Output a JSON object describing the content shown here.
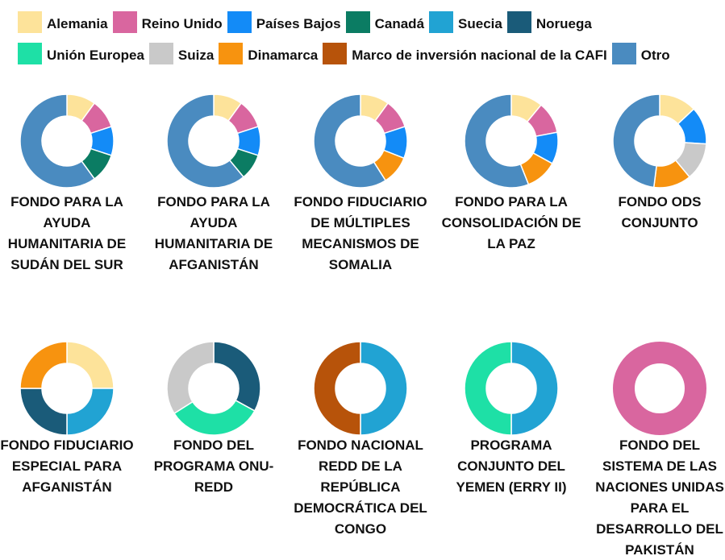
{
  "legend": {
    "entries": [
      {
        "name": "Alemania",
        "color": "#fde39a"
      },
      {
        "name": "Reino Unido",
        "color": "#d9669f"
      },
      {
        "name": "Países Bajos",
        "color": "#138bf7"
      },
      {
        "name": "Canadá",
        "color": "#0b7c63"
      },
      {
        "name": "Suecia",
        "color": "#21a3d3"
      },
      {
        "name": "Noruega",
        "color": "#1a5b79"
      },
      {
        "name": "Unión Europea",
        "color": "#1ee0a6"
      },
      {
        "name": "Suiza",
        "color": "#c9c9c9"
      },
      {
        "name": "Dinamarca",
        "color": "#f7930f"
      },
      {
        "name": "Marco de inversión nacional de la CAFI",
        "color": "#b7530a"
      },
      {
        "name": "Otro",
        "color": "#4a8bc0"
      }
    ]
  },
  "chart_data": [
    {
      "type": "pie",
      "title": "FONDO PARA LA AYUDA HUMANITARIA DE SUDÁN DEL SUR",
      "categories": [
        "Alemania",
        "Reino Unido",
        "Países Bajos",
        "Canadá",
        "Otro"
      ],
      "values": [
        10,
        10,
        10,
        10,
        60
      ]
    },
    {
      "type": "pie",
      "title": "FONDO PARA LA AYUDA HUMANITARIA DE AFGANISTÁN",
      "categories": [
        "Alemania",
        "Reino Unido",
        "Países Bajos",
        "Canadá",
        "Otro"
      ],
      "values": [
        10,
        10,
        10,
        9,
        61
      ]
    },
    {
      "type": "pie",
      "title": "FONDO FIDUCIARIO DE MÚLTIPLES MECANISMOS DE SOMALIA",
      "categories": [
        "Alemania",
        "Reino Unido",
        "Países Bajos",
        "Dinamarca",
        "Otro"
      ],
      "values": [
        10,
        10,
        11,
        10,
        59
      ]
    },
    {
      "type": "pie",
      "title": "FONDO PARA LA CONSOLIDACIÓN DE LA PAZ",
      "categories": [
        "Alemania",
        "Reino Unido",
        "Países Bajos",
        "Dinamarca",
        "Otro"
      ],
      "values": [
        11,
        11,
        11,
        11,
        56
      ]
    },
    {
      "type": "pie",
      "title": "FONDO ODS CONJUNTO",
      "categories": [
        "Alemania",
        "Países Bajos",
        "Suiza",
        "Dinamarca",
        "Otro"
      ],
      "values": [
        13,
        13,
        13,
        13,
        48
      ]
    },
    {
      "type": "pie",
      "title": "FONDO FIDUCIARIO ESPECIAL PARA AFGANISTÁN",
      "categories": [
        "Alemania",
        "Suecia",
        "Noruega",
        "Dinamarca"
      ],
      "values": [
        25,
        25,
        25,
        25
      ]
    },
    {
      "type": "pie",
      "title": "FONDO DEL PROGRAMA ONU-REDD",
      "categories": [
        "Noruega",
        "Unión Europea",
        "Suiza"
      ],
      "values": [
        33,
        33,
        34
      ]
    },
    {
      "type": "pie",
      "title": "FONDO NACIONAL REDD DE LA REPÚBLICA DEMOCRÁTICA DEL CONGO",
      "categories": [
        "Suecia",
        "Marco de inversión nacional de la CAFI"
      ],
      "values": [
        50,
        50
      ]
    },
    {
      "type": "pie",
      "title": "PROGRAMA CONJUNTO DEL YEMEN (ERRY II)",
      "categories": [
        "Suecia",
        "Unión Europea"
      ],
      "values": [
        50,
        50
      ]
    },
    {
      "type": "pie",
      "title": "FONDO DEL SISTEMA DE LAS NACIONES UNIDAS PARA EL DESARROLLO DEL PAKISTÁN",
      "categories": [
        "Reino Unido"
      ],
      "values": [
        100
      ]
    }
  ]
}
